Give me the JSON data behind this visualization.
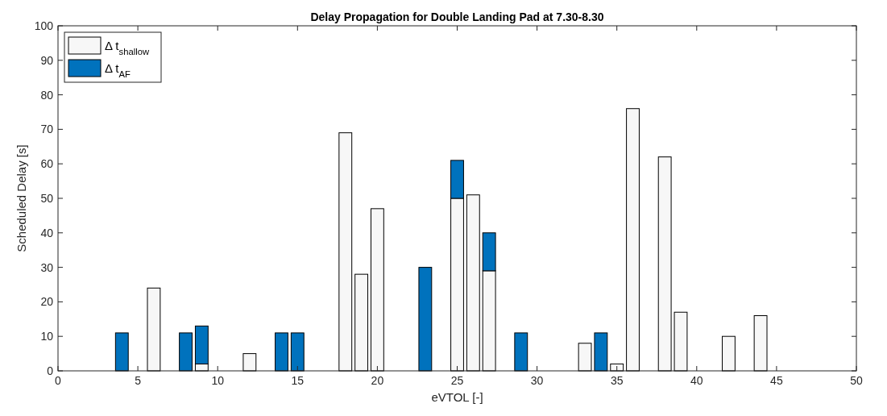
{
  "chart_data": {
    "type": "bar",
    "stacked": true,
    "title": "Delay Propagation for Double Landing Pad at 7.30-8.30",
    "xlabel": "eVTOL [-]",
    "ylabel": "Scheduled Delay [s]",
    "x": [
      1,
      2,
      3,
      4,
      5,
      6,
      7,
      8,
      9,
      10,
      11,
      12,
      13,
      14,
      15,
      16,
      17,
      18,
      19,
      20,
      21,
      22,
      23,
      24,
      25,
      26,
      27,
      28,
      29,
      30,
      31,
      32,
      33,
      34,
      35,
      36,
      37,
      38,
      39,
      40,
      41,
      42,
      43,
      44,
      45
    ],
    "series": [
      {
        "name": "Δ t$_{shallow}$",
        "color": "#f7f7f7",
        "values": [
          0,
          0,
          0,
          0,
          0,
          24,
          0,
          0,
          2,
          0,
          0,
          5,
          0,
          0,
          0,
          0,
          0,
          69,
          28,
          47,
          0,
          0,
          0,
          0,
          50,
          51,
          29,
          0,
          0,
          0,
          0,
          0,
          8,
          0,
          2,
          76,
          0,
          62,
          17,
          0,
          0,
          10,
          0,
          16,
          0
        ]
      },
      {
        "name": "Δ t$_{AF}$",
        "color": "#0072bd",
        "values": [
          0,
          0,
          0,
          11,
          0,
          0,
          0,
          11,
          11,
          0,
          0,
          0,
          0,
          11,
          11,
          0,
          0,
          0,
          0,
          0,
          0,
          0,
          30,
          0,
          11,
          0,
          11,
          0,
          11,
          0,
          0,
          0,
          0,
          11,
          0,
          0,
          0,
          0,
          0,
          0,
          0,
          0,
          0,
          0,
          0
        ]
      }
    ],
    "xlim": [
      0,
      50
    ],
    "xticks": [
      0,
      5,
      10,
      15,
      20,
      25,
      30,
      35,
      40,
      45,
      50
    ],
    "ylim": [
      0,
      100
    ],
    "yticks": [
      0,
      10,
      20,
      30,
      40,
      50,
      60,
      70,
      80,
      90,
      100
    ],
    "grid": false,
    "legend": "top left"
  }
}
